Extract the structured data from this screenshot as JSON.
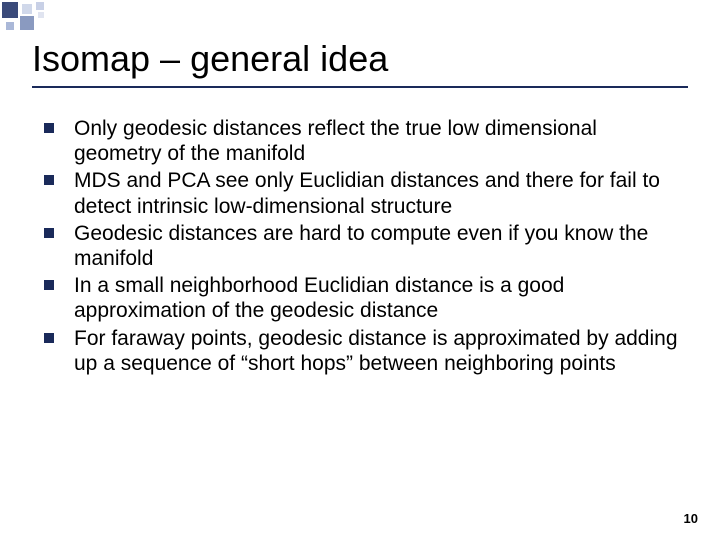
{
  "slide": {
    "title": "Isomap – general idea",
    "bullets": [
      "Only geodesic distances reflect the true low dimensional geometry of the manifold",
      "MDS and PCA see only Euclidian distances and there for fail to detect intrinsic low-dimensional structure",
      "Geodesic distances are hard to compute even if you know the manifold",
      "In a small neighborhood Euclidian distance is a good approximation of the geodesic distance",
      "For faraway points, geodesic distance is approximated by adding up a sequence of “short hops” between neighboring points"
    ],
    "page_number": "10"
  },
  "style": {
    "title_fontsize": 36,
    "body_fontsize": 21,
    "text_color": "#000000",
    "rule_color": "#1a2a5a",
    "bullet_marker_color": "#1a2a5a",
    "background_color": "#ffffff",
    "decoration_colors": [
      "#3a4a7a",
      "#d0d8ea",
      "#8a9ac0",
      "#c8d0e6",
      "#e0e4f0",
      "#aab8d8"
    ]
  }
}
